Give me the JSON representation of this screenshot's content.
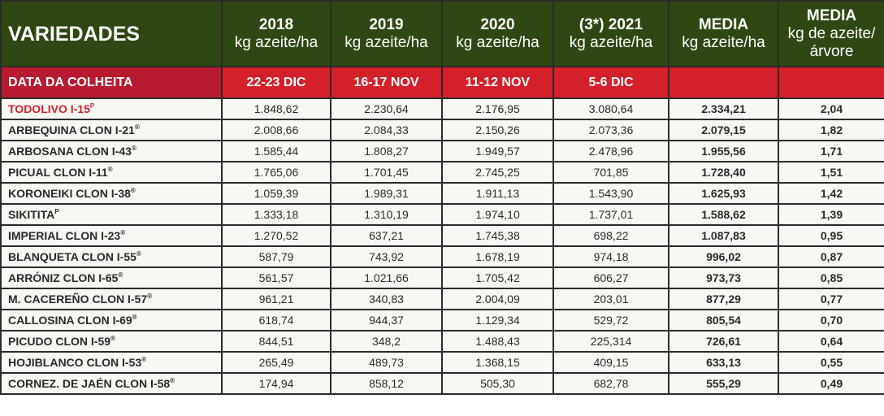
{
  "header": {
    "variety_label": "VARIEDADES",
    "columns": [
      {
        "title": "2018",
        "unit": "kg azeite/ha"
      },
      {
        "title": "2019",
        "unit": "kg azeite/ha"
      },
      {
        "title": "2020",
        "unit": "kg azeite/ha"
      },
      {
        "title": "(3*) 2021",
        "unit": "kg azeite/ha"
      },
      {
        "title": "MEDIA",
        "unit": "kg azeite/ha"
      },
      {
        "title": "MEDIA",
        "unit": "kg de azeite/ árvore"
      }
    ]
  },
  "harvest": {
    "label": "DATA DA COLHEITA",
    "dates": [
      "22-23 DIC",
      "16-17 NOV",
      "11-12 NOV",
      "5-6 DIC",
      "",
      ""
    ]
  },
  "highlight_color": "#d3202a",
  "rows": [
    {
      "name": "TODOLIVO I-15",
      "mark": "P",
      "highlight": true,
      "values": [
        "1.848,62",
        "2.230,64",
        "2.176,95",
        "3.080,64",
        "2.334,21",
        "2,04"
      ]
    },
    {
      "name": "ARBEQUINA CLON I-21",
      "mark": "®",
      "values": [
        "2.008,66",
        "2.084,33",
        "2.150,26",
        "2.073,36",
        "2.079,15",
        "1,82"
      ]
    },
    {
      "name": "ARBOSANA CLON I-43",
      "mark": "®",
      "values": [
        "1.585,44",
        "1.808,27",
        "1.949,57",
        "2.478,96",
        "1.955,56",
        "1,71"
      ]
    },
    {
      "name": "PICUAL CLON I-11",
      "mark": "®",
      "values": [
        "1.765,06",
        "1.701,45",
        "2.745,25",
        "701,85",
        "1.728,40",
        "1,51"
      ]
    },
    {
      "name": "KORONEIKI CLON I-38",
      "mark": "®",
      "values": [
        "1.059,39",
        "1.989,31",
        "1.911,13",
        "1.543,90",
        "1.625,93",
        "1,42"
      ]
    },
    {
      "name": "SIKITITA",
      "mark": "P",
      "values": [
        "1.333,18",
        "1.310,19",
        "1.974,10",
        "1.737,01",
        "1.588,62",
        "1,39"
      ]
    },
    {
      "name": "IMPERIAL CLON I-23",
      "mark": "®",
      "values": [
        "1.270,52",
        "637,21",
        "1.745,38",
        "698,22",
        "1.087,83",
        "0,95"
      ]
    },
    {
      "name": "BLANQUETA CLON I-55",
      "mark": "®",
      "values": [
        "587,79",
        "743,92",
        "1.678,19",
        "974,18",
        "996,02",
        "0,87"
      ]
    },
    {
      "name": "ARRÓNIZ CLON I-65",
      "mark": "®",
      "values": [
        "561,57",
        "1.021,66",
        "1.705,42",
        "606,27",
        "973,73",
        "0,85"
      ]
    },
    {
      "name": "M. CACEREÑO CLON I-57",
      "mark": "®",
      "values": [
        "961,21",
        "340,83",
        "2.004,09",
        "203,01",
        "877,29",
        "0,77"
      ]
    },
    {
      "name": "CALLOSINA CLON I-69",
      "mark": "®",
      "values": [
        "618,74",
        "944,37",
        "1.129,34",
        "529,72",
        "805,54",
        "0,70"
      ]
    },
    {
      "name": "PICUDO CLON I-59",
      "mark": "®",
      "values": [
        "844,51",
        "348,2",
        "1.488,43",
        "225,314",
        "726,61",
        "0,64"
      ]
    },
    {
      "name": "HOJIBLANCO CLON I-53",
      "mark": "®",
      "values": [
        "265,49",
        "489,73",
        "1.368,15",
        "409,15",
        "633,13",
        "0,55"
      ]
    },
    {
      "name": "CORNEZ. DE JAÉN CLON I-58",
      "mark": "®",
      "values": [
        "174,94",
        "858,12",
        "505,30",
        "682,78",
        "555,29",
        "0,49"
      ]
    }
  ]
}
